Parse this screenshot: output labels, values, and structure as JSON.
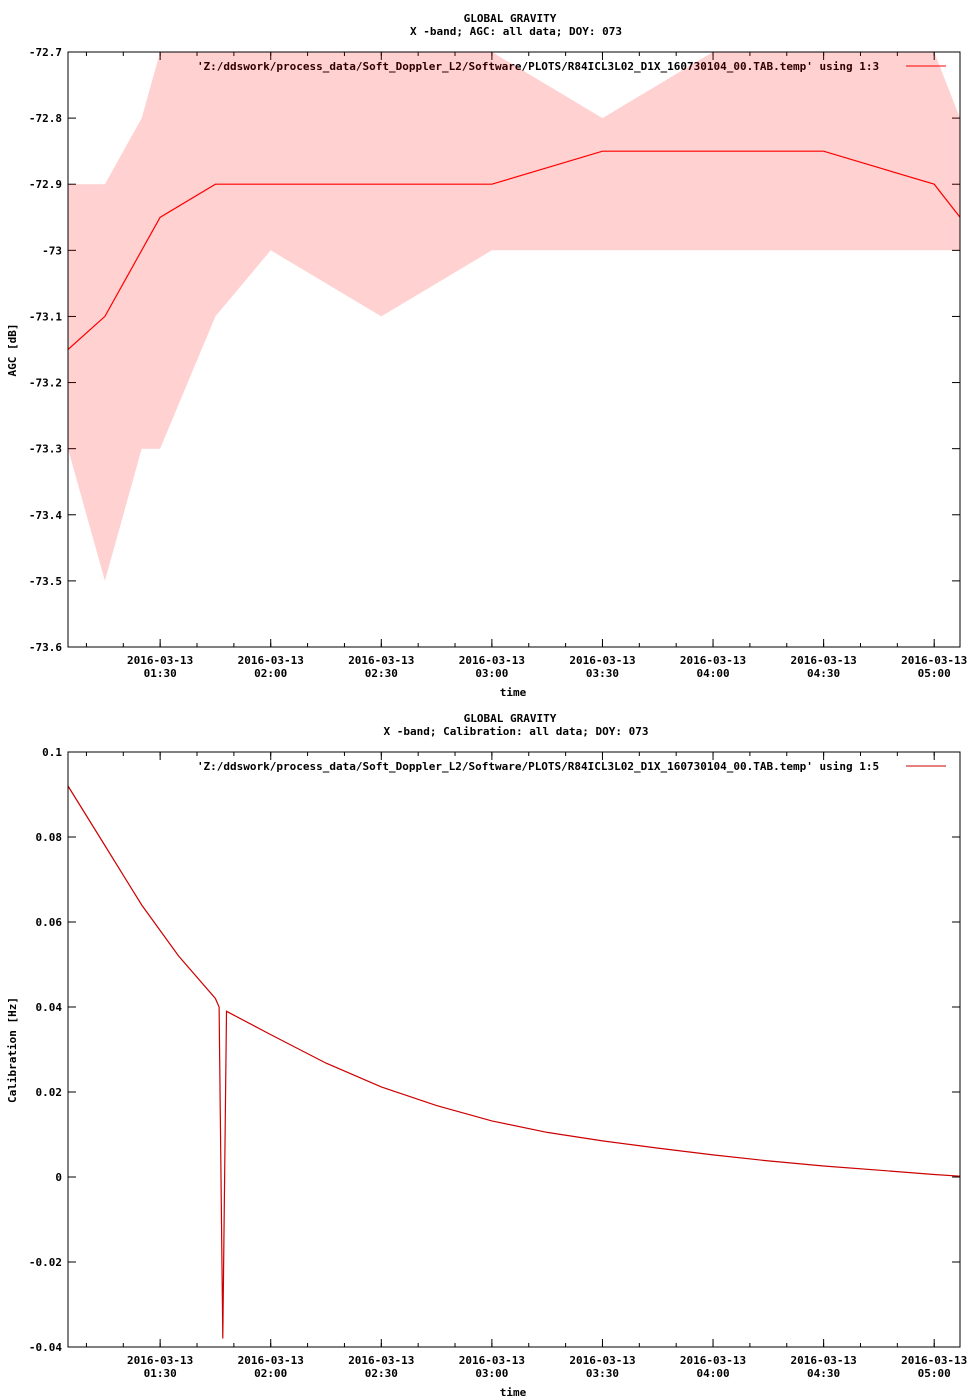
{
  "colors": {
    "series": "#ff0000",
    "series_dark": "#cc0000",
    "axis": "#000000",
    "background": "#ffffff"
  },
  "chart_data": [
    {
      "type": "line",
      "title": "GLOBAL GRAVITY",
      "subtitle": "X -band; AGC: all data; DOY: 073",
      "xlabel": "time",
      "ylabel": "AGC [dB]",
      "x_range": [
        "2016-03-13 01:05",
        "2016-03-13 05:07"
      ],
      "ylim": [
        -73.6,
        -72.7
      ],
      "y_ticks": [
        "-72.7",
        "-72.8",
        "-72.9",
        "-73",
        "-73.1",
        "-73.2",
        "-73.3",
        "-73.4",
        "-73.5",
        "-73.6"
      ],
      "x_tick_dates": [
        "2016-03-13",
        "2016-03-13",
        "2016-03-13",
        "2016-03-13",
        "2016-03-13",
        "2016-03-13",
        "2016-03-13",
        "2016-03-13"
      ],
      "x_tick_times": [
        "01:30",
        "02:00",
        "02:30",
        "03:00",
        "03:30",
        "04:00",
        "04:30",
        "05:00"
      ],
      "grid": false,
      "legend_position": "top-right",
      "series": [
        {
          "name": "'Z:/ddswork/process_data/Soft_Doppler_L2/Software/PLOTS/R84ICL3L02_D1X_160730104_00.TAB.temp' using 1:3",
          "x": [
            "01:05",
            "01:15",
            "01:25",
            "01:30",
            "01:45",
            "02:00",
            "02:30",
            "03:00",
            "03:30",
            "04:00",
            "04:30",
            "05:00",
            "05:07"
          ],
          "values": [
            -73.15,
            -73.1,
            -73.0,
            -72.95,
            -72.9,
            -72.9,
            -72.9,
            -72.9,
            -72.85,
            -72.85,
            -72.85,
            -72.9,
            -72.95
          ],
          "range_low": [
            -73.3,
            -73.5,
            -73.3,
            -73.3,
            -73.1,
            -73.0,
            -73.1,
            -73.0,
            -73.0,
            -73.0,
            -73.0,
            -73.0,
            -73.0
          ],
          "range_high": [
            -72.9,
            -72.9,
            -72.8,
            -72.7,
            -72.7,
            -72.7,
            -72.7,
            -72.7,
            -72.8,
            -72.7,
            -72.7,
            -72.7,
            -72.8
          ]
        }
      ]
    },
    {
      "type": "line",
      "title": "GLOBAL GRAVITY",
      "subtitle": "X -band; Calibration: all data; DOY: 073",
      "xlabel": "time",
      "ylabel": "Calibration [Hz]",
      "x_range": [
        "2016-03-13 01:05",
        "2016-03-13 05:07"
      ],
      "ylim": [
        -0.04,
        0.1
      ],
      "y_ticks": [
        "0.1",
        "0.08",
        "0.06",
        "0.04",
        "0.02",
        "0",
        "-0.02",
        "-0.04"
      ],
      "x_tick_dates": [
        "2016-03-13",
        "2016-03-13",
        "2016-03-13",
        "2016-03-13",
        "2016-03-13",
        "2016-03-13",
        "2016-03-13",
        "2016-03-13"
      ],
      "x_tick_times": [
        "01:30",
        "02:00",
        "02:30",
        "03:00",
        "03:30",
        "04:00",
        "04:30",
        "05:00"
      ],
      "grid": false,
      "legend_position": "top-right",
      "series": [
        {
          "name": "'Z:/ddswork/process_data/Soft_Doppler_L2/Software/PLOTS/R84ICL3L02_D1X_160730104_00.TAB.temp' using 1:5",
          "x": [
            "01:05",
            "01:15",
            "01:25",
            "01:35",
            "01:45",
            "01:46",
            "01:47",
            "01:48",
            "02:00",
            "02:15",
            "02:30",
            "02:45",
            "03:00",
            "03:15",
            "03:30",
            "03:45",
            "04:00",
            "04:15",
            "04:30",
            "04:45",
            "05:00",
            "05:07"
          ],
          "values": [
            0.092,
            0.078,
            0.064,
            0.052,
            0.042,
            0.04,
            -0.038,
            0.039,
            0.0335,
            0.0268,
            0.0212,
            0.0168,
            0.0132,
            0.0105,
            0.0085,
            0.0068,
            0.0052,
            0.0038,
            0.0026,
            0.0016,
            0.0006,
            0.0002
          ]
        }
      ]
    }
  ]
}
